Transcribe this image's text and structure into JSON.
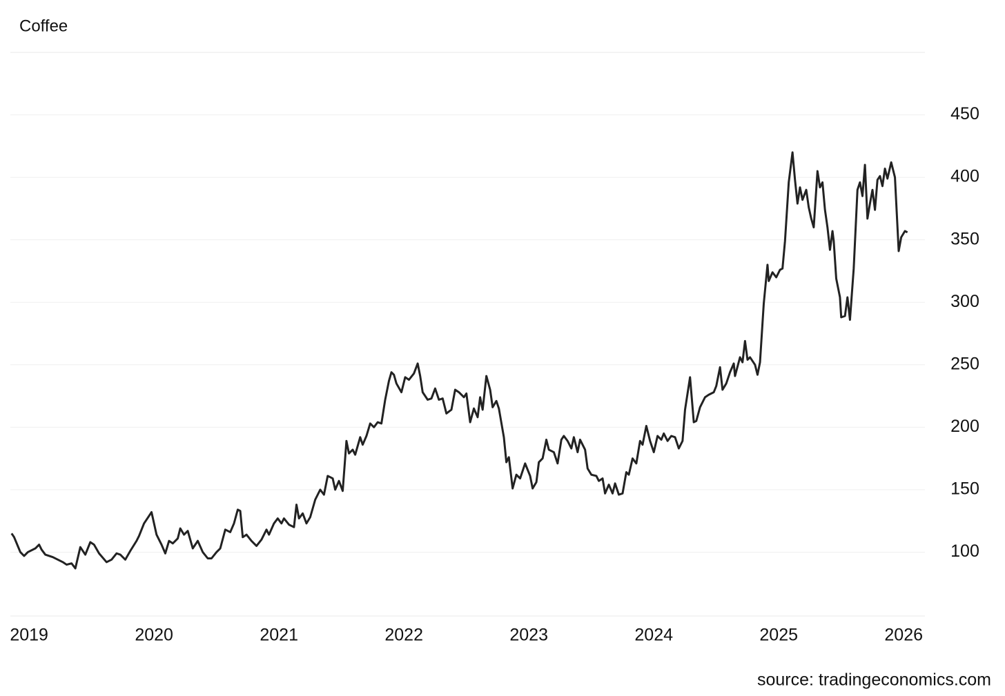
{
  "chart_data": {
    "type": "line",
    "title": "Coffee",
    "source": "source: tradingeconomics.com",
    "series": [
      {
        "name": "Coffee",
        "color": "#222222",
        "x": [
          2018.86,
          2018.88,
          2018.93,
          2018.96,
          2018.99,
          2019.05,
          2019.08,
          2019.1,
          2019.13,
          2019.19,
          2019.23,
          2019.27,
          2019.3,
          2019.34,
          2019.37,
          2019.41,
          2019.45,
          2019.49,
          2019.52,
          2019.56,
          2019.62,
          2019.66,
          2019.7,
          2019.73,
          2019.77,
          2019.81,
          2019.86,
          2019.88,
          2019.92,
          2019.96,
          2019.98,
          2020.02,
          2020.06,
          2020.09,
          2020.12,
          2020.15,
          2020.19,
          2020.21,
          2020.24,
          2020.27,
          2020.31,
          2020.35,
          2020.39,
          2020.43,
          2020.46,
          2020.5,
          2020.53,
          2020.57,
          2020.61,
          2020.64,
          2020.67,
          2020.69,
          2020.71,
          2020.74,
          2020.78,
          2020.82,
          2020.86,
          2020.9,
          2020.92,
          2020.96,
          2020.99,
          2021.02,
          2021.04,
          2021.08,
          2021.12,
          2021.14,
          2021.16,
          2021.19,
          2021.22,
          2021.25,
          2021.29,
          2021.33,
          2021.36,
          2021.39,
          2021.43,
          2021.45,
          2021.48,
          2021.51,
          2021.54,
          2021.56,
          2021.59,
          2021.61,
          2021.65,
          2021.67,
          2021.7,
          2021.73,
          2021.76,
          2021.79,
          2021.82,
          2021.85,
          2021.88,
          2021.9,
          2021.92,
          2021.94,
          2021.98,
          2022.01,
          2022.04,
          2022.08,
          2022.11,
          2022.13,
          2022.15,
          2022.19,
          2022.22,
          2022.25,
          2022.28,
          2022.31,
          2022.34,
          2022.38,
          2022.41,
          2022.44,
          2022.48,
          2022.5,
          2022.53,
          2022.56,
          2022.59,
          2022.61,
          2022.63,
          2022.66,
          2022.69,
          2022.71,
          2022.74,
          2022.76,
          2022.8,
          2022.82,
          2022.84,
          2022.87,
          2022.9,
          2022.93,
          2022.97,
          2023.01,
          2023.03,
          2023.06,
          2023.08,
          2023.11,
          2023.14,
          2023.16,
          2023.2,
          2023.23,
          2023.26,
          2023.28,
          2023.31,
          2023.34,
          2023.36,
          2023.39,
          2023.41,
          2023.45,
          2023.47,
          2023.5,
          2023.54,
          2023.56,
          2023.59,
          2023.61,
          2023.64,
          2023.67,
          2023.69,
          2023.72,
          2023.75,
          2023.78,
          2023.8,
          2023.83,
          2023.86,
          2023.89,
          2023.91,
          2023.94,
          2023.97,
          2024.0,
          2024.03,
          2024.06,
          2024.08,
          2024.11,
          2024.14,
          2024.17,
          2024.2,
          2024.23,
          2024.25,
          2024.29,
          2024.32,
          2024.34,
          2024.37,
          2024.41,
          2024.44,
          2024.48,
          2024.5,
          2024.53,
          2024.55,
          2024.58,
          2024.61,
          2024.64,
          2024.65,
          2024.69,
          2024.71,
          2024.73,
          2024.75,
          2024.77,
          2024.81,
          2024.83,
          2024.85,
          2024.88,
          2024.91,
          2024.92,
          2024.95,
          2024.98,
          2025.01,
          2025.03,
          2025.05,
          2025.08,
          2025.11,
          2025.13,
          2025.15,
          2025.17,
          2025.19,
          2025.22,
          2025.24,
          2025.26,
          2025.28,
          2025.31,
          2025.33,
          2025.35,
          2025.37,
          2025.39,
          2025.41,
          2025.43,
          2025.44,
          2025.46,
          2025.49,
          2025.5,
          2025.53,
          2025.55,
          2025.57,
          2025.6,
          2025.63,
          2025.65,
          2025.67,
          2025.69,
          2025.71,
          2025.73,
          2025.75,
          2025.77,
          2025.79,
          2025.81,
          2025.83,
          2025.85,
          2025.87,
          2025.9,
          2025.93,
          2025.96,
          2025.98,
          2026.01,
          2026.03
        ],
        "values": [
          115,
          112,
          100,
          97,
          100,
          103,
          106,
          102,
          98,
          96,
          94,
          92,
          90,
          91,
          87,
          104,
          98,
          108,
          106,
          99,
          92,
          94,
          99,
          98,
          94,
          101,
          109,
          113,
          123,
          129,
          132,
          114,
          106,
          99,
          109,
          107,
          111,
          119,
          114,
          117,
          103,
          109,
          100,
          95,
          95,
          100,
          103,
          118,
          116,
          123,
          134,
          133,
          112,
          114,
          109,
          105,
          110,
          118,
          114,
          123,
          127,
          123,
          127,
          122,
          120,
          138,
          127,
          131,
          123,
          128,
          142,
          150,
          146,
          161,
          159,
          150,
          157,
          149,
          189,
          179,
          182,
          178,
          192,
          186,
          193,
          203,
          200,
          204,
          203,
          222,
          237,
          244,
          242,
          235,
          228,
          240,
          238,
          243,
          251,
          241,
          228,
          222,
          223,
          231,
          222,
          223,
          211,
          214,
          230,
          228,
          224,
          227,
          204,
          215,
          208,
          224,
          214,
          241,
          230,
          216,
          221,
          215,
          192,
          172,
          176,
          151,
          162,
          159,
          171,
          161,
          151,
          156,
          172,
          175,
          190,
          182,
          180,
          171,
          190,
          193,
          189,
          183,
          192,
          180,
          190,
          182,
          167,
          162,
          161,
          157,
          159,
          147,
          154,
          147,
          155,
          146,
          147,
          164,
          162,
          175,
          171,
          189,
          186,
          201,
          189,
          180,
          193,
          190,
          195,
          189,
          193,
          192,
          183,
          189,
          214,
          240,
          204,
          205,
          216,
          224,
          226,
          228,
          233,
          248,
          230,
          235,
          244,
          251,
          241,
          256,
          252,
          269,
          254,
          256,
          250,
          242,
          252,
          299,
          330,
          317,
          324,
          320,
          326,
          327,
          349,
          396,
          420,
          398,
          379,
          392,
          382,
          390,
          376,
          367,
          360,
          405,
          392,
          396,
          374,
          360,
          342,
          357,
          349,
          319,
          304,
          288,
          289,
          304,
          286,
          327,
          390,
          396,
          385,
          410,
          367,
          379,
          390,
          374,
          398,
          401,
          393,
          407,
          399,
          412,
          400,
          341,
          352,
          357,
          356
        ]
      }
    ],
    "xlim": [
      2018.85,
      2026.17
    ],
    "xticks": [
      2019,
      2020,
      2021,
      2022,
      2023,
      2024,
      2025,
      2026
    ],
    "ylim": [
      50,
      500
    ],
    "yticks": [
      100,
      150,
      200,
      250,
      300,
      350,
      400,
      450
    ],
    "grid": true
  }
}
